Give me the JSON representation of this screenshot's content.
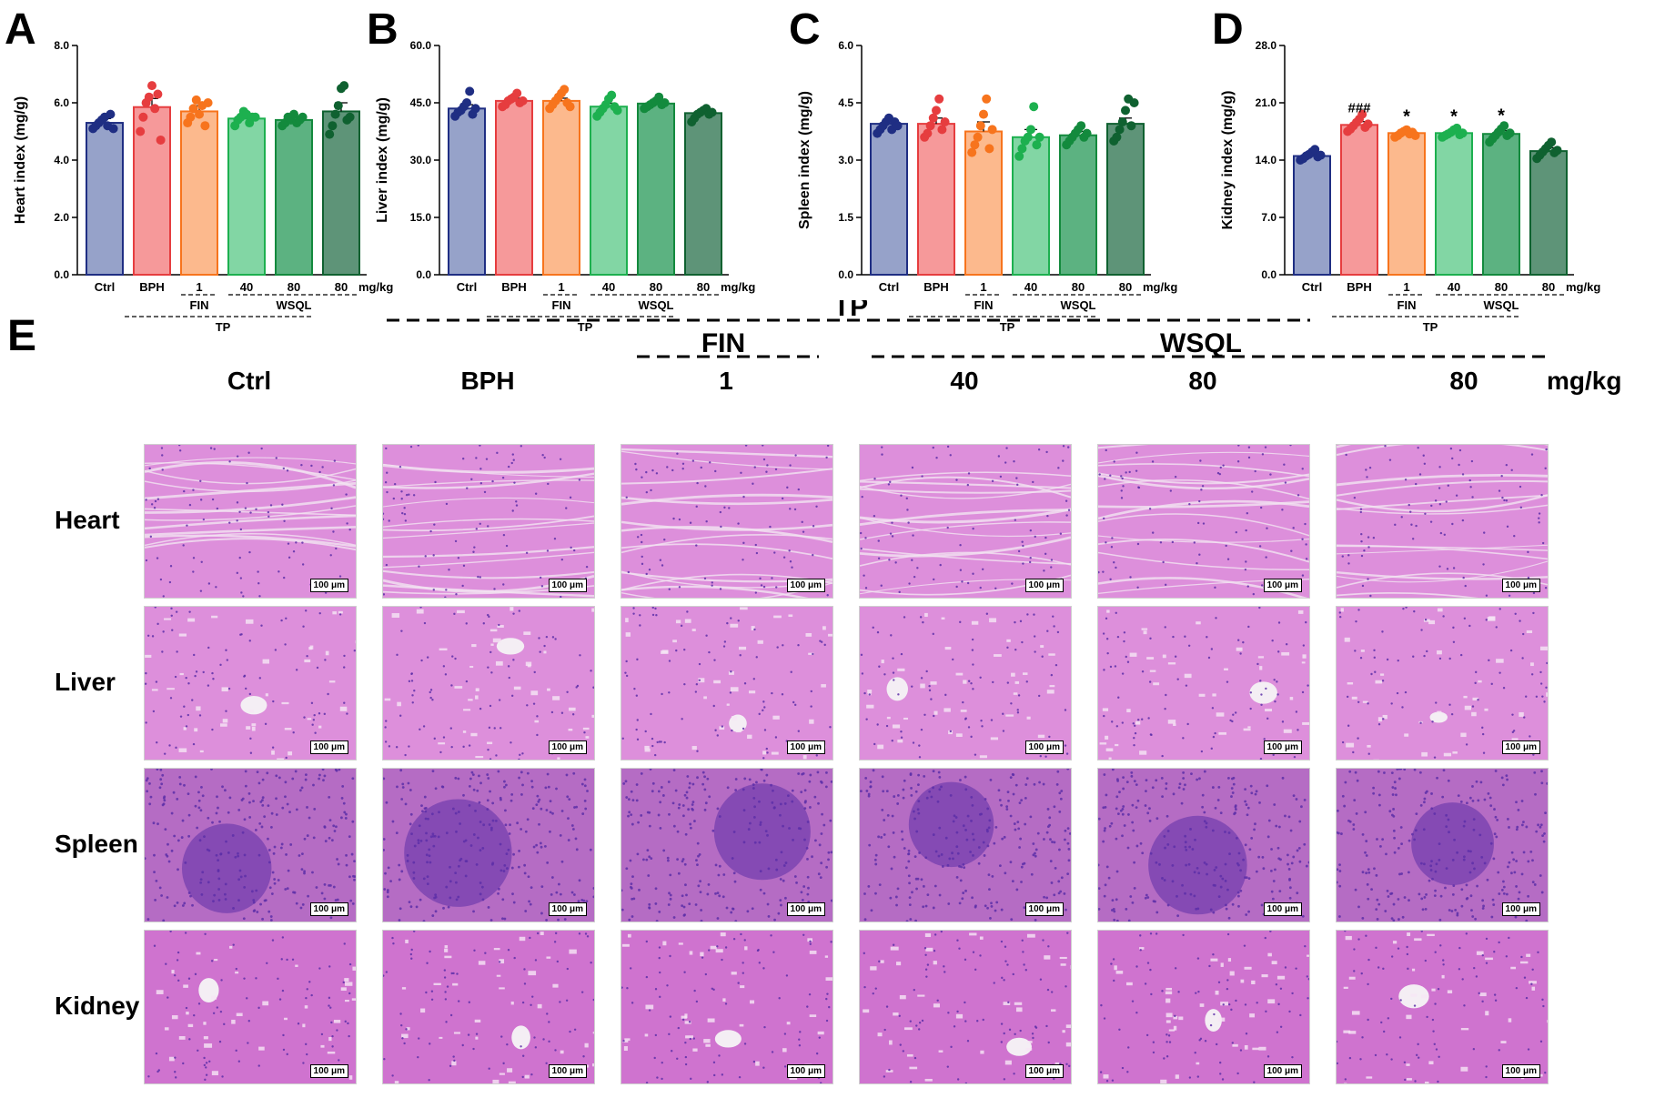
{
  "panel_letter_e": "E",
  "chart_data": [
    {
      "panel_letter": "A",
      "type": "bar",
      "title": "",
      "ylabel": "Heart index (mg/g)",
      "ylim": [
        0,
        8
      ],
      "yticks": [
        "0.0",
        "2.0",
        "4.0",
        "6.0",
        "8.0"
      ],
      "categories": [
        "Ctrl",
        "BPH",
        "1",
        "40",
        "80",
        "80"
      ],
      "unit_label": "mg/kg",
      "values": [
        5.3,
        5.85,
        5.7,
        5.45,
        5.4,
        5.7
      ],
      "sem": [
        0.15,
        0.3,
        0.2,
        0.1,
        0.1,
        0.3
      ],
      "points": [
        [
          5.1,
          5.2,
          5.3,
          5.4,
          5.5,
          5.2,
          5.6,
          5.1
        ],
        [
          5.0,
          5.5,
          6.0,
          6.2,
          6.6,
          5.8,
          6.3,
          4.7
        ],
        [
          5.3,
          5.5,
          5.8,
          6.1,
          5.6,
          5.9,
          5.2,
          6.0
        ],
        [
          5.2,
          5.4,
          5.5,
          5.7,
          5.6,
          5.3,
          5.5,
          5.5
        ],
        [
          5.2,
          5.3,
          5.5,
          5.4,
          5.6,
          5.3,
          5.4,
          5.5
        ],
        [
          4.9,
          5.2,
          5.6,
          5.9,
          6.5,
          6.6,
          5.4,
          5.5
        ]
      ],
      "significance": [
        "",
        "",
        "",
        "",
        "",
        ""
      ]
    },
    {
      "panel_letter": "B",
      "type": "bar",
      "title": "",
      "ylabel": "Liver index (mg/g)",
      "ylim": [
        0,
        60
      ],
      "yticks": [
        "0.0",
        "15.0",
        "30.0",
        "45.0",
        "60.0"
      ],
      "categories": [
        "Ctrl",
        "BPH",
        "1",
        "40",
        "80",
        "80"
      ],
      "unit_label": "mg/kg",
      "values": [
        43.5,
        45.5,
        45.5,
        44.0,
        44.8,
        42.3
      ],
      "sem": [
        1.0,
        0.7,
        0.7,
        0.9,
        0.5,
        0.5
      ],
      "points": [
        [
          41.5,
          42.5,
          43.0,
          44.0,
          45.0,
          48.0,
          42.0,
          43.5
        ],
        [
          44.0,
          44.5,
          45.5,
          46.0,
          46.5,
          47.5,
          45.0,
          45.5
        ],
        [
          43.5,
          44.5,
          45.5,
          46.5,
          47.5,
          48.5,
          45.0,
          44.0
        ],
        [
          41.5,
          42.5,
          43.5,
          44.5,
          46.0,
          47.0,
          44.0,
          43.0
        ],
        [
          43.5,
          44.0,
          44.5,
          45.0,
          45.5,
          46.5,
          44.5,
          45.0
        ],
        [
          40.0,
          41.0,
          42.0,
          42.5,
          43.0,
          43.5,
          42.0,
          42.5
        ]
      ],
      "significance": [
        "",
        "",
        "",
        "",
        "",
        ""
      ]
    },
    {
      "panel_letter": "C",
      "type": "bar",
      "title": "",
      "ylabel": "Spleen index (mg/g)",
      "ylim": [
        0,
        6
      ],
      "yticks": [
        "0.0",
        "1.5",
        "3.0",
        "4.5",
        "6.0"
      ],
      "categories": [
        "Ctrl",
        "BPH",
        "1",
        "40",
        "80",
        "80"
      ],
      "unit_label": "mg/kg",
      "values": [
        3.95,
        3.95,
        3.75,
        3.6,
        3.65,
        3.95
      ],
      "sem": [
        0.1,
        0.15,
        0.25,
        0.2,
        0.1,
        0.15
      ],
      "points": [
        [
          3.7,
          3.8,
          3.9,
          4.0,
          4.1,
          3.8,
          4.0,
          3.9
        ],
        [
          3.6,
          3.7,
          3.9,
          4.1,
          4.3,
          4.6,
          3.8,
          4.0
        ],
        [
          3.2,
          3.4,
          3.6,
          3.9,
          4.2,
          4.6,
          3.3,
          3.8
        ],
        [
          3.1,
          3.3,
          3.5,
          3.6,
          3.8,
          4.4,
          3.4,
          3.6
        ],
        [
          3.4,
          3.5,
          3.6,
          3.7,
          3.8,
          3.9,
          3.6,
          3.7
        ],
        [
          3.5,
          3.6,
          3.8,
          4.0,
          4.3,
          4.6,
          3.9,
          4.5
        ]
      ],
      "significance": [
        "",
        "",
        "",
        "",
        "",
        ""
      ]
    },
    {
      "panel_letter": "D",
      "type": "bar",
      "title": "",
      "ylabel": "Kidney index (mg/g)",
      "ylim": [
        0,
        28
      ],
      "yticks": [
        "0.0",
        "7.0",
        "14.0",
        "21.0",
        "28.0"
      ],
      "categories": [
        "Ctrl",
        "BPH",
        "1",
        "40",
        "80",
        "80"
      ],
      "unit_label": "mg/kg",
      "values": [
        14.5,
        18.3,
        17.3,
        17.3,
        17.2,
        15.1
      ],
      "sem": [
        0.2,
        0.4,
        0.2,
        0.2,
        0.4,
        0.4
      ],
      "points": [
        [
          14.0,
          14.2,
          14.5,
          14.7,
          15.0,
          15.3,
          14.4,
          14.6
        ],
        [
          17.5,
          17.8,
          18.2,
          18.6,
          19.0,
          19.6,
          18.0,
          18.4
        ],
        [
          16.8,
          17.0,
          17.3,
          17.5,
          17.7,
          17.2,
          17.4,
          17.0
        ],
        [
          16.8,
          17.0,
          17.2,
          17.4,
          17.7,
          17.9,
          17.1,
          17.3
        ],
        [
          16.2,
          16.6,
          17.0,
          17.4,
          17.8,
          18.2,
          17.0,
          17.3
        ],
        [
          14.2,
          14.6,
          15.0,
          15.4,
          15.8,
          16.2,
          14.9,
          15.2
        ]
      ],
      "significance": [
        "",
        "###",
        "*",
        "*",
        "*",
        ""
      ]
    }
  ],
  "group_labels": {
    "fin": "FIN",
    "wsql": "WSQL",
    "tp": "TP"
  },
  "micrographs": {
    "column_labels": [
      "Ctrl",
      "BPH",
      "1",
      "40",
      "80",
      "80"
    ],
    "unit_label": "mg/kg",
    "row_labels": [
      "Heart",
      "Liver",
      "Spleen",
      "Kidney"
    ],
    "scale_bar": "100 μm",
    "group_tp": "TP",
    "group_fin": "FIN",
    "group_wsql": "WSQL"
  },
  "colors": {
    "bar_fill": [
      "#96a2c9",
      "#f6999a",
      "#fcb98d",
      "#82d6a4",
      "#5cb281",
      "#5e9478"
    ],
    "bar_edge": [
      "#1f2e83",
      "#e63d3f",
      "#f7741d",
      "#1db04f",
      "#138a3d",
      "#0f6130"
    ],
    "tissue_he": "#d98ad8",
    "tissue_nuclei": "#5d2fa8"
  }
}
